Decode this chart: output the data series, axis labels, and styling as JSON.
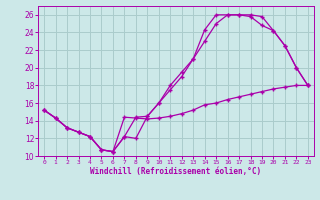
{
  "xlabel": "Windchill (Refroidissement éolien,°C)",
  "background_color": "#cce8e8",
  "grid_color": "#aacccc",
  "line_color": "#aa00aa",
  "xlim": [
    -0.5,
    23.5
  ],
  "ylim": [
    10,
    27
  ],
  "yticks": [
    10,
    12,
    14,
    16,
    18,
    20,
    22,
    24,
    26
  ],
  "xticks": [
    0,
    1,
    2,
    3,
    4,
    5,
    6,
    7,
    8,
    9,
    10,
    11,
    12,
    13,
    14,
    15,
    16,
    17,
    18,
    19,
    20,
    21,
    22,
    23
  ],
  "line1_x": [
    0,
    1,
    2,
    3,
    4,
    5,
    6,
    7,
    8,
    9,
    10,
    11,
    12,
    13,
    14,
    15,
    16,
    17,
    18,
    19,
    20,
    21,
    22,
    23
  ],
  "line1_y": [
    15.2,
    14.3,
    13.2,
    12.7,
    12.2,
    10.7,
    10.5,
    14.4,
    14.3,
    14.2,
    14.3,
    14.5,
    14.8,
    15.2,
    15.8,
    16.0,
    16.4,
    16.7,
    17.0,
    17.3,
    17.6,
    17.8,
    18.0,
    18.0
  ],
  "line2_x": [
    0,
    1,
    2,
    3,
    4,
    5,
    6,
    7,
    8,
    9,
    10,
    11,
    12,
    13,
    14,
    15,
    16,
    17,
    18,
    19,
    20,
    21,
    22,
    23
  ],
  "line2_y": [
    15.2,
    14.3,
    13.2,
    12.7,
    12.2,
    10.7,
    10.5,
    12.2,
    12.0,
    14.5,
    16.0,
    17.5,
    19.0,
    21.0,
    23.0,
    25.0,
    26.0,
    26.0,
    26.0,
    25.8,
    24.2,
    22.5,
    20.0,
    18.0
  ],
  "line3_x": [
    0,
    1,
    2,
    3,
    4,
    5,
    6,
    7,
    8,
    9,
    10,
    11,
    12,
    13,
    14,
    15,
    16,
    17,
    18,
    19,
    20,
    21,
    22,
    23
  ],
  "line3_y": [
    15.2,
    14.3,
    13.2,
    12.7,
    12.2,
    10.7,
    10.5,
    12.2,
    14.4,
    14.5,
    16.0,
    18.0,
    19.5,
    21.0,
    24.3,
    26.0,
    26.0,
    26.0,
    25.8,
    24.8,
    24.2,
    22.5,
    20.0,
    18.0
  ]
}
